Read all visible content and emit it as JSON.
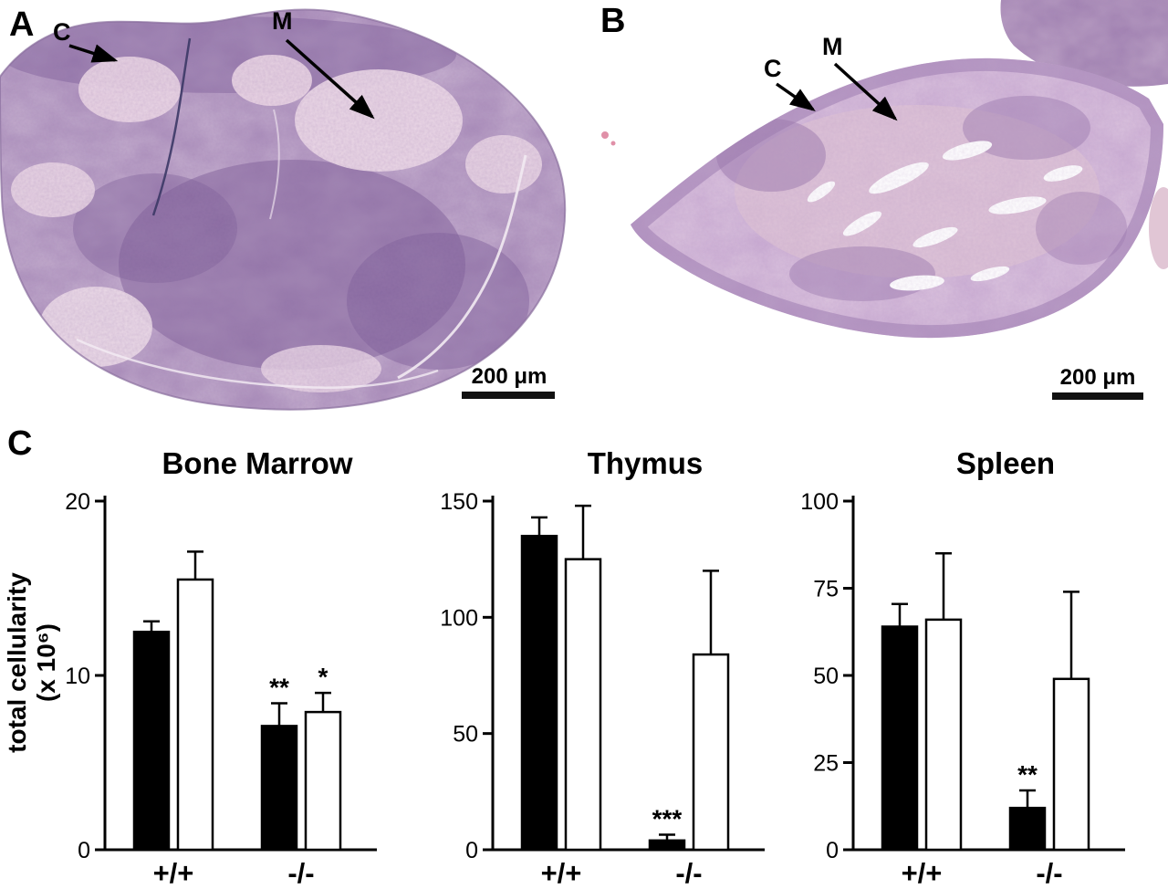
{
  "figure": {
    "panel_a": {
      "label": "A",
      "cortex_label": "C",
      "medulla_label": "M",
      "scale_bar_label": "200 μm"
    },
    "panel_b": {
      "label": "B",
      "cortex_label": "C",
      "medulla_label": "M",
      "scale_bar_label": "200 μm"
    },
    "panel_c": {
      "label": "C",
      "y_axis_label": "total cellularity",
      "y_axis_label_units": "(x 10⁶)"
    }
  },
  "colors": {
    "tissue_purple": "#a78ab8",
    "tissue_light_pink": "#efdce8",
    "bar_black": "#000000",
    "bar_white": "#ffffff"
  },
  "chart_data": [
    {
      "type": "bar",
      "title": "Bone Marrow",
      "categories": [
        "+/+",
        "-/-"
      ],
      "series": [
        {
          "name": "filled-black-bar",
          "fill": "black",
          "values": [
            12.5,
            7.1
          ],
          "errors_up": [
            0.6,
            1.3
          ],
          "significance": [
            "",
            "**"
          ]
        },
        {
          "name": "open-white-bar",
          "fill": "white",
          "values": [
            15.5,
            7.9
          ],
          "errors_up": [
            1.6,
            1.1
          ],
          "significance": [
            "",
            "*"
          ]
        }
      ],
      "ylabel": "total cellularity (x 10⁶)",
      "ylim": [
        0,
        20
      ],
      "yticks": [
        0,
        10,
        20
      ],
      "grid": false,
      "legend": "none"
    },
    {
      "type": "bar",
      "title": "Thymus",
      "categories": [
        "+/+",
        "-/-"
      ],
      "series": [
        {
          "name": "filled-black-bar",
          "fill": "black",
          "values": [
            135,
            4
          ],
          "errors_up": [
            8,
            2.5
          ],
          "significance": [
            "",
            "***"
          ]
        },
        {
          "name": "open-white-bar",
          "fill": "white",
          "values": [
            125,
            84
          ],
          "errors_up": [
            23,
            36
          ],
          "significance": [
            "",
            ""
          ]
        }
      ],
      "ylabel": "total cellularity (x 10⁶)",
      "ylim": [
        0,
        150
      ],
      "yticks": [
        0,
        50,
        100,
        150
      ],
      "grid": false,
      "legend": "none"
    },
    {
      "type": "bar",
      "title": "Spleen",
      "categories": [
        "+/+",
        "-/-"
      ],
      "series": [
        {
          "name": "filled-black-bar",
          "fill": "black",
          "values": [
            64,
            12
          ],
          "errors_up": [
            6.5,
            5
          ],
          "significance": [
            "",
            "**"
          ]
        },
        {
          "name": "open-white-bar",
          "fill": "white",
          "values": [
            66,
            49
          ],
          "errors_up": [
            19,
            25
          ],
          "significance": [
            "",
            ""
          ]
        }
      ],
      "ylabel": "total cellularity (x 10⁶)",
      "ylim": [
        0,
        100
      ],
      "yticks": [
        0,
        25,
        50,
        75,
        100
      ],
      "grid": false,
      "legend": "none"
    }
  ]
}
